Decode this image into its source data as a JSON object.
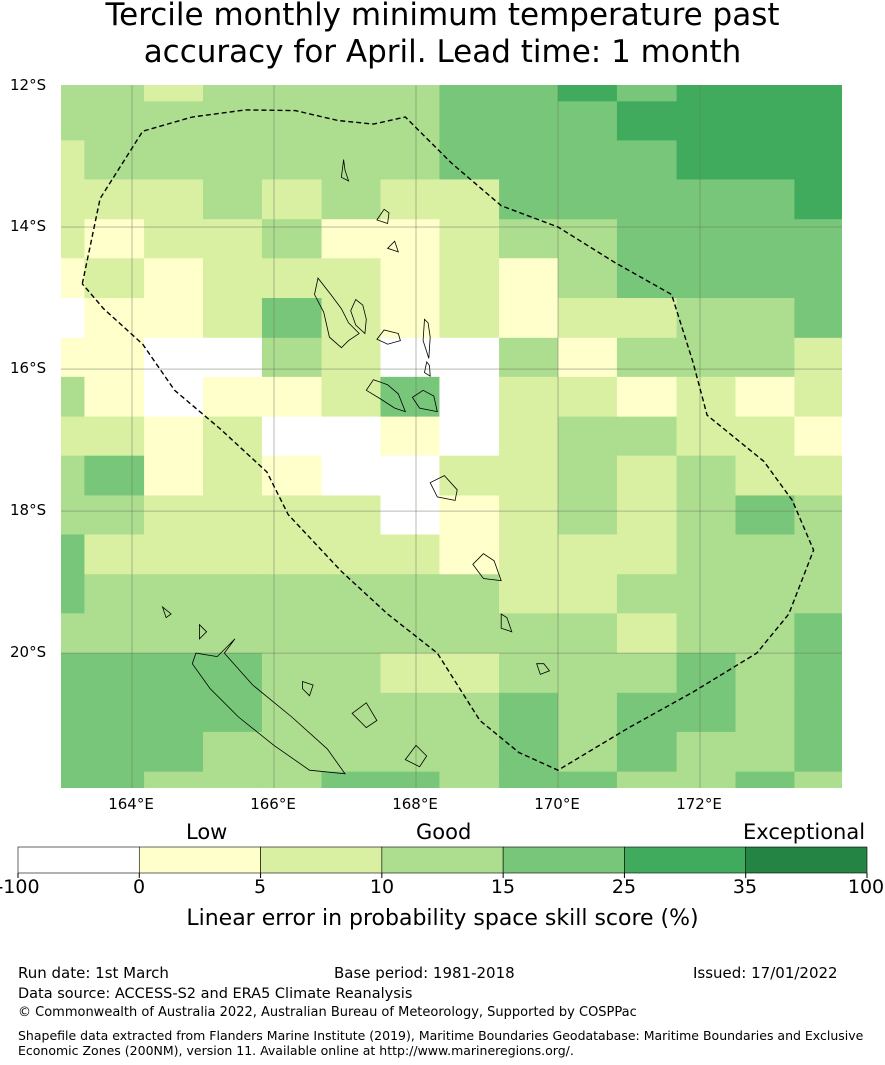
{
  "title_line1": "Tercile monthly minimum temperature past",
  "title_line2": "accuracy for April. Lead time: 1 month",
  "map": {
    "lat_labels": [
      "12°S",
      "14°S",
      "16°S",
      "18°S",
      "20°S"
    ],
    "lon_labels": [
      "164°E",
      "166°E",
      "168°E",
      "170°E",
      "172°E"
    ],
    "lon_range": [
      163.0,
      174.0
    ],
    "lat_range": [
      -21.9,
      -12.0
    ],
    "grid_lines": true,
    "colors": [
      "#ffffff",
      "#ffffcc",
      "#d9f0a3",
      "#addd8e",
      "#78c679",
      "#41ab5d",
      "#238443"
    ],
    "grid_cols_lon_edges": [
      163.0,
      163.33,
      164.17,
      165.0,
      165.83,
      166.67,
      167.5,
      168.33,
      169.17,
      170.0,
      170.83,
      171.67,
      172.5,
      173.33,
      174.0
    ],
    "grid_rows_lat_edges": [
      -12.0,
      -12.23,
      -12.78,
      -13.33,
      -13.89,
      -14.44,
      -15.0,
      -15.56,
      -16.11,
      -16.67,
      -17.22,
      -17.78,
      -18.33,
      -18.89,
      -19.44,
      -20.0,
      -20.56,
      -21.11,
      -21.67,
      -21.9
    ],
    "skill_class_grid": [
      [
        3,
        3,
        2,
        3,
        3,
        3,
        3,
        4,
        4,
        5,
        4,
        5,
        5,
        5
      ],
      [
        3,
        3,
        3,
        3,
        3,
        3,
        3,
        4,
        4,
        4,
        5,
        5,
        5,
        5
      ],
      [
        2,
        3,
        3,
        3,
        3,
        3,
        3,
        4,
        4,
        4,
        4,
        5,
        5,
        5
      ],
      [
        2,
        2,
        2,
        3,
        2,
        3,
        2,
        2,
        4,
        4,
        4,
        4,
        4,
        5
      ],
      [
        2,
        1,
        2,
        2,
        3,
        1,
        1,
        2,
        3,
        3,
        4,
        4,
        4,
        4
      ],
      [
        1,
        2,
        1,
        2,
        2,
        2,
        1,
        2,
        1,
        3,
        4,
        4,
        4,
        4
      ],
      [
        0,
        1,
        1,
        2,
        4,
        2,
        1,
        2,
        1,
        2,
        2,
        3,
        3,
        4
      ],
      [
        1,
        1,
        0,
        0,
        3,
        2,
        0,
        0,
        3,
        1,
        3,
        3,
        3,
        2
      ],
      [
        3,
        1,
        0,
        1,
        1,
        2,
        4,
        0,
        2,
        2,
        1,
        2,
        1,
        2
      ],
      [
        2,
        2,
        1,
        2,
        0,
        0,
        1,
        0,
        2,
        3,
        3,
        2,
        2,
        1
      ],
      [
        3,
        4,
        1,
        2,
        1,
        0,
        0,
        2,
        2,
        3,
        2,
        3,
        2,
        2
      ],
      [
        3,
        3,
        2,
        2,
        2,
        2,
        0,
        1,
        2,
        3,
        2,
        3,
        4,
        3
      ],
      [
        4,
        2,
        2,
        2,
        2,
        2,
        2,
        1,
        2,
        2,
        2,
        3,
        3,
        3
      ],
      [
        4,
        3,
        3,
        3,
        3,
        3,
        3,
        3,
        2,
        2,
        3,
        3,
        3,
        3
      ],
      [
        3,
        3,
        3,
        3,
        3,
        3,
        3,
        3,
        3,
        3,
        2,
        3,
        3,
        4
      ],
      [
        4,
        4,
        4,
        4,
        3,
        3,
        2,
        2,
        3,
        3,
        3,
        4,
        3,
        4
      ],
      [
        4,
        4,
        4,
        4,
        3,
        3,
        3,
        3,
        4,
        3,
        4,
        4,
        3,
        4
      ],
      [
        4,
        4,
        4,
        3,
        3,
        3,
        3,
        3,
        4,
        3,
        4,
        3,
        3,
        4
      ],
      [
        4,
        4,
        3,
        3,
        3,
        4,
        4,
        3,
        4,
        4,
        3,
        3,
        4,
        3
      ]
    ],
    "eez_boundary_lonlat": [
      [
        163.3,
        -14.8
      ],
      [
        163.55,
        -13.6
      ],
      [
        164.15,
        -12.65
      ],
      [
        164.85,
        -12.45
      ],
      [
        165.6,
        -12.35
      ],
      [
        166.3,
        -12.36
      ],
      [
        166.9,
        -12.5
      ],
      [
        167.4,
        -12.55
      ],
      [
        167.85,
        -12.45
      ],
      [
        168.5,
        -13.1
      ],
      [
        169.2,
        -13.7
      ],
      [
        170.0,
        -14.0
      ],
      [
        170.8,
        -14.5
      ],
      [
        171.6,
        -14.95
      ],
      [
        171.9,
        -15.9
      ],
      [
        172.1,
        -16.65
      ],
      [
        172.9,
        -17.3
      ],
      [
        173.3,
        -17.85
      ],
      [
        173.6,
        -18.55
      ],
      [
        173.25,
        -19.45
      ],
      [
        172.8,
        -20.0
      ],
      [
        171.9,
        -20.55
      ],
      [
        171.0,
        -21.05
      ],
      [
        170.0,
        -21.65
      ],
      [
        169.45,
        -21.4
      ],
      [
        168.9,
        -20.95
      ],
      [
        168.3,
        -20.0
      ],
      [
        167.6,
        -19.45
      ],
      [
        166.95,
        -18.85
      ],
      [
        166.2,
        -18.05
      ],
      [
        165.9,
        -17.45
      ],
      [
        165.25,
        -16.85
      ],
      [
        164.6,
        -16.3
      ],
      [
        164.15,
        -15.65
      ],
      [
        163.6,
        -15.15
      ],
      [
        163.3,
        -14.8
      ]
    ],
    "islands_lonlat": [
      [
        [
          167.2,
          -15.5
        ],
        [
          167.05,
          -15.35
        ],
        [
          166.95,
          -15.15
        ],
        [
          166.8,
          -14.95
        ],
        [
          166.62,
          -14.72
        ],
        [
          166.57,
          -14.95
        ],
        [
          166.7,
          -15.2
        ],
        [
          166.78,
          -15.55
        ],
        [
          166.95,
          -15.7
        ],
        [
          167.05,
          -15.6
        ]
      ],
      [
        [
          167.15,
          -15.02
        ],
        [
          167.08,
          -15.18
        ],
        [
          167.15,
          -15.38
        ],
        [
          167.28,
          -15.5
        ],
        [
          167.3,
          -15.3
        ],
        [
          167.25,
          -15.1
        ]
      ],
      [
        [
          167.75,
          -15.5
        ],
        [
          167.55,
          -15.45
        ],
        [
          167.45,
          -15.58
        ],
        [
          167.6,
          -15.65
        ],
        [
          167.78,
          -15.6
        ]
      ],
      [
        [
          168.12,
          -15.3
        ],
        [
          168.1,
          -15.6
        ],
        [
          168.18,
          -15.85
        ],
        [
          168.2,
          -15.55
        ],
        [
          168.17,
          -15.35
        ]
      ],
      [
        [
          168.15,
          -15.9
        ],
        [
          168.12,
          -16.05
        ],
        [
          168.2,
          -16.1
        ],
        [
          168.19,
          -15.95
        ]
      ],
      [
        [
          167.4,
          -16.15
        ],
        [
          167.3,
          -16.3
        ],
        [
          167.5,
          -16.42
        ],
        [
          167.7,
          -16.55
        ],
        [
          167.85,
          -16.6
        ],
        [
          167.75,
          -16.35
        ],
        [
          167.6,
          -16.22
        ]
      ],
      [
        [
          168.1,
          -16.3
        ],
        [
          167.95,
          -16.4
        ],
        [
          168.05,
          -16.55
        ],
        [
          168.3,
          -16.6
        ],
        [
          168.25,
          -16.38
        ]
      ],
      [
        [
          168.4,
          -17.5
        ],
        [
          168.2,
          -17.6
        ],
        [
          168.3,
          -17.8
        ],
        [
          168.55,
          -17.85
        ],
        [
          168.58,
          -17.7
        ]
      ],
      [
        [
          168.95,
          -18.6
        ],
        [
          168.8,
          -18.75
        ],
        [
          168.95,
          -18.95
        ],
        [
          169.2,
          -18.98
        ],
        [
          169.1,
          -18.7
        ]
      ],
      [
        [
          169.2,
          -19.45
        ],
        [
          169.2,
          -19.65
        ],
        [
          169.35,
          -19.7
        ],
        [
          169.28,
          -19.5
        ]
      ],
      [
        [
          166.98,
          -13.05
        ],
        [
          166.95,
          -13.3
        ],
        [
          167.05,
          -13.35
        ],
        [
          167.0,
          -13.2
        ]
      ],
      [
        [
          167.55,
          -13.75
        ],
        [
          167.45,
          -13.9
        ],
        [
          167.6,
          -13.95
        ],
        [
          167.62,
          -13.8
        ]
      ],
      [
        [
          167.7,
          -14.2
        ],
        [
          167.6,
          -14.3
        ],
        [
          167.75,
          -14.35
        ]
      ],
      [
        [
          169.7,
          -20.15
        ],
        [
          169.75,
          -20.3
        ],
        [
          169.88,
          -20.25
        ],
        [
          169.8,
          -20.15
        ]
      ],
      [
        [
          165.45,
          -19.8
        ],
        [
          165.3,
          -20.0
        ],
        [
          165.7,
          -20.45
        ],
        [
          166.25,
          -20.9
        ],
        [
          166.75,
          -21.35
        ],
        [
          167.0,
          -21.7
        ],
        [
          166.5,
          -21.65
        ],
        [
          166.0,
          -21.3
        ],
        [
          165.5,
          -20.9
        ],
        [
          165.1,
          -20.5
        ],
        [
          164.85,
          -20.15
        ],
        [
          164.9,
          -20.0
        ],
        [
          165.2,
          -20.05
        ]
      ],
      [
        [
          164.95,
          -19.6
        ],
        [
          165.05,
          -19.7
        ],
        [
          164.95,
          -19.8
        ]
      ],
      [
        [
          166.4,
          -20.4
        ],
        [
          166.55,
          -20.45
        ],
        [
          166.5,
          -20.6
        ],
        [
          166.4,
          -20.5
        ]
      ],
      [
        [
          167.3,
          -20.7
        ],
        [
          167.1,
          -20.85
        ],
        [
          167.3,
          -21.05
        ],
        [
          167.45,
          -20.95
        ]
      ],
      [
        [
          168.0,
          -21.3
        ],
        [
          167.85,
          -21.5
        ],
        [
          168.05,
          -21.6
        ],
        [
          168.15,
          -21.45
        ]
      ],
      [
        [
          164.43,
          -19.35
        ],
        [
          164.48,
          -19.5
        ],
        [
          164.55,
          -19.45
        ]
      ]
    ]
  },
  "colorbar": {
    "categories": [
      "Low",
      "Good",
      "Exceptional"
    ],
    "ticks": [
      "-100",
      "0",
      "5",
      "10",
      "15",
      "25",
      "35",
      "100"
    ],
    "colors": [
      "#ffffff",
      "#ffffcc",
      "#d9f0a3",
      "#addd8e",
      "#78c679",
      "#41ab5d",
      "#238443"
    ],
    "title": "Linear error in probability space skill score (%)"
  },
  "footer": {
    "run_date": "Run date: 1st March",
    "base_period": "Base period: 1981-2018",
    "issued": "Issued: 17/01/2022",
    "data_source": "Data source: ACCESS-S2 and ERA5 Climate Reanalysis",
    "copyright": "© Commonwealth of Australia 2022, Australian Bureau of Meteorology, Supported by COSPPac",
    "shapefile_line1": "Shapefile data extracted from Flanders Marine Institute (2019), Maritime Boundaries Geodatabase: Maritime Boundaries and Exclusive",
    "shapefile_line2": "Economic Zones (200NM), version 11. Available online at http://www.marineregions.org/."
  }
}
